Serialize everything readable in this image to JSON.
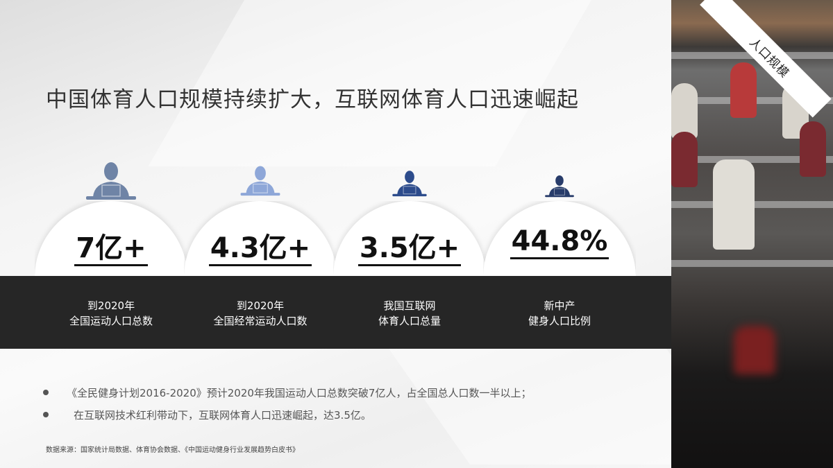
{
  "title": "中国体育人口规模持续扩大，互联网体育人口迅速崛起",
  "corner_tag": "人口规模",
  "stats": [
    {
      "value": "7亿+",
      "label_line1": "到2020年",
      "label_line2": "全国运动人口总数",
      "icon": "person-at-laptop-icon",
      "icon_color": "#6f84a6"
    },
    {
      "value": "4.3亿+",
      "label_line1": "到2020年",
      "label_line2": "全国经常运动人口数",
      "icon": "person-at-laptop-icon",
      "icon_color": "#8ea7d8"
    },
    {
      "value": "3.5亿+",
      "label_line1": "我国互联网",
      "label_line2": "体育人口总量",
      "icon": "person-at-laptop-icon",
      "icon_color": "#2d4c8c"
    },
    {
      "value": "44.8%",
      "label_line1": "新中产",
      "label_line2": "健身人口比例",
      "icon": "person-at-laptop-icon",
      "icon_color": "#283c6a"
    }
  ],
  "bullets": [
    "《全民健身计划2016-2020》预计2020年我国运动人口总数突破7亿人，占全国总人口数一半以上；",
    "在互联网技术红利带动下，互联网体育人口迅速崛起，达3.5亿。"
  ],
  "source": "数据来源：国家统计局数据、体育协会数据、《中国运动健身行业发展趋势白皮书》",
  "colors": {
    "band": "#262626",
    "title": "#333333"
  }
}
